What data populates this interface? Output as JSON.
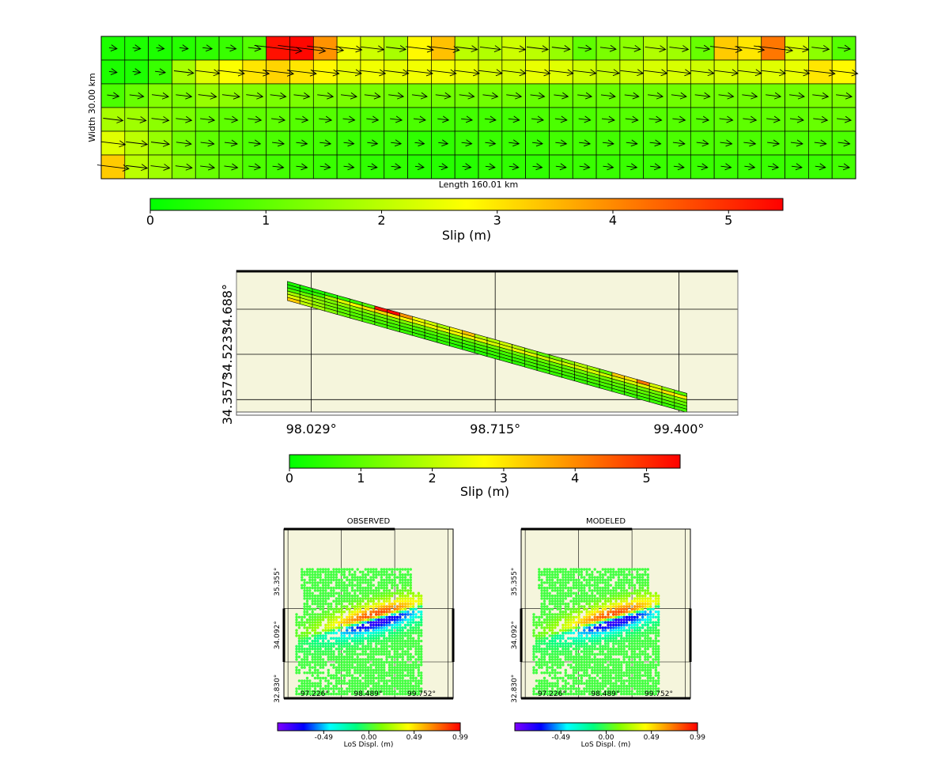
{
  "colors": {
    "slip_scale": [
      "#00ff00",
      "#80ff00",
      "#ffff00",
      "#ff8000",
      "#ff0000"
    ],
    "los_scale": [
      "#8000ff",
      "#0000ff",
      "#00ffff",
      "#00ff80",
      "#80ff00",
      "#ffff00",
      "#ff8000",
      "#ff0000"
    ],
    "map_background": "#f5f5dc"
  },
  "chart_data": [
    {
      "id": "slip_distribution",
      "type": "heatmap",
      "title": "",
      "xlabel": "Length 160.01 km",
      "ylabel": "Width 30.00 km",
      "rows": 6,
      "cols": 32,
      "vector_field": "slip direction arrows per patch",
      "slip_m": [
        [
          0.3,
          0.3,
          0.3,
          0.4,
          0.5,
          0.6,
          0.9,
          5.3,
          5.4,
          3.9,
          2.6,
          2.2,
          1.8,
          2.8,
          3.4,
          2.0,
          1.9,
          2.2,
          2.0,
          1.6,
          1.0,
          1.3,
          1.5,
          1.9,
          1.7,
          1.1,
          3.3,
          3.0,
          4.2,
          2.3,
          1.5,
          0.9
        ],
        [
          0.3,
          0.3,
          0.6,
          1.8,
          2.4,
          2.7,
          3.0,
          3.2,
          3.0,
          2.8,
          2.5,
          2.6,
          2.5,
          2.6,
          2.6,
          2.5,
          2.3,
          2.3,
          2.5,
          2.4,
          2.2,
          2.1,
          2.2,
          2.3,
          2.3,
          2.2,
          2.3,
          2.3,
          2.4,
          2.5,
          3.0,
          2.8
        ],
        [
          0.8,
          1.1,
          1.4,
          1.3,
          1.6,
          1.5,
          1.4,
          1.3,
          1.3,
          1.3,
          1.3,
          1.3,
          1.2,
          1.2,
          1.2,
          1.2,
          1.2,
          1.2,
          1.1,
          1.1,
          1.1,
          1.1,
          1.1,
          1.2,
          1.2,
          1.2,
          1.2,
          1.2,
          1.2,
          1.2,
          1.3,
          1.3
        ],
        [
          1.8,
          1.7,
          1.5,
          1.3,
          1.1,
          1.0,
          1.0,
          1.0,
          0.9,
          0.9,
          0.8,
          0.8,
          0.8,
          0.8,
          0.7,
          0.7,
          0.7,
          0.7,
          0.8,
          0.8,
          0.8,
          0.9,
          0.9,
          0.9,
          0.9,
          0.9,
          1.0,
          1.0,
          1.0,
          1.0,
          1.1,
          1.1
        ],
        [
          2.4,
          2.0,
          1.6,
          1.2,
          1.0,
          0.9,
          0.8,
          0.8,
          0.7,
          0.7,
          0.6,
          0.6,
          0.6,
          0.5,
          0.5,
          0.6,
          0.6,
          0.6,
          0.6,
          0.7,
          0.7,
          0.7,
          0.7,
          0.7,
          0.8,
          0.8,
          0.8,
          0.8,
          0.8,
          0.8,
          0.8,
          0.8
        ],
        [
          3.3,
          2.0,
          1.7,
          1.4,
          1.1,
          1.0,
          0.8,
          0.7,
          0.7,
          0.6,
          0.6,
          0.5,
          0.5,
          0.4,
          0.4,
          0.4,
          0.5,
          0.5,
          0.5,
          0.6,
          0.6,
          0.6,
          0.6,
          0.6,
          0.6,
          0.6,
          0.6,
          0.6,
          0.6,
          0.6,
          0.6,
          0.7
        ]
      ]
    },
    {
      "id": "slip_colorbar_1",
      "type": "colorbar",
      "label": "Slip (m)",
      "range": [
        0,
        5.47
      ],
      "ticks": [
        "0",
        "1",
        "2",
        "3",
        "4",
        "5"
      ],
      "tick_values": [
        0,
        1,
        2,
        3,
        4,
        5
      ]
    },
    {
      "id": "fault_map",
      "type": "map",
      "lon_ticks": [
        "98.029°",
        "98.715°",
        "99.400°"
      ],
      "lat_ticks": [
        "34.357°",
        "34.523°",
        "34.688°"
      ],
      "xlim": [
        97.75,
        99.62
      ],
      "ylim": [
        34.3,
        34.83
      ],
      "fault_trace": [
        [
          97.94,
          34.79
        ],
        [
          99.43,
          34.38
        ]
      ],
      "fault_width_deg": 0.07,
      "rows": 6,
      "cols": 32,
      "slip_rows_from_surface": "same as slip_distribution"
    },
    {
      "id": "slip_colorbar_2",
      "type": "colorbar",
      "label": "Slip (m)",
      "range": [
        0,
        5.47
      ],
      "ticks": [
        "0",
        "1",
        "2",
        "3",
        "4",
        "5"
      ],
      "tick_values": [
        0,
        1,
        2,
        3,
        4,
        5
      ]
    },
    {
      "id": "insar_observed",
      "type": "scatter",
      "title": "OBSERVED",
      "lon_ticks": [
        "97.226°",
        "98.489°",
        "99.752°"
      ],
      "lat_ticks": [
        "32.830°",
        "34.092°",
        "35.355°"
      ],
      "xlim": [
        96.5,
        100.5
      ],
      "ylim": [
        32.6,
        36.6
      ],
      "coverage_lon": [
        96.8,
        99.8
      ],
      "coverage_lat": [
        32.7,
        35.7
      ],
      "deformation_center": [
        98.7,
        34.5
      ],
      "max_abs_los_m": 0.99
    },
    {
      "id": "insar_modeled",
      "type": "scatter",
      "title": "MODELED",
      "lon_ticks": [
        "97.226°",
        "98.489°",
        "99.752°"
      ],
      "lat_ticks": [
        "32.830°",
        "34.092°",
        "35.355°"
      ],
      "xlim": [
        96.5,
        100.5
      ],
      "ylim": [
        32.6,
        36.6
      ],
      "coverage_lon": [
        96.8,
        99.8
      ],
      "coverage_lat": [
        32.7,
        35.7
      ],
      "deformation_center": [
        98.7,
        34.5
      ],
      "max_abs_los_m": 0.99
    },
    {
      "id": "los_colorbar_obs",
      "type": "colorbar",
      "label": "LoS Displ. (m)",
      "range": [
        -0.99,
        0.99
      ],
      "ticks": [
        "-0.49",
        "0.00",
        "0.49",
        "0.99"
      ],
      "tick_values": [
        -0.49,
        0.0,
        0.49,
        0.99
      ]
    },
    {
      "id": "los_colorbar_mod",
      "type": "colorbar",
      "label": "LoS Displ. (m)",
      "range": [
        -0.99,
        0.99
      ],
      "ticks": [
        "-0.49",
        "0.00",
        "0.49",
        "0.99"
      ],
      "tick_values": [
        -0.49,
        0.0,
        0.49,
        0.99
      ]
    }
  ]
}
